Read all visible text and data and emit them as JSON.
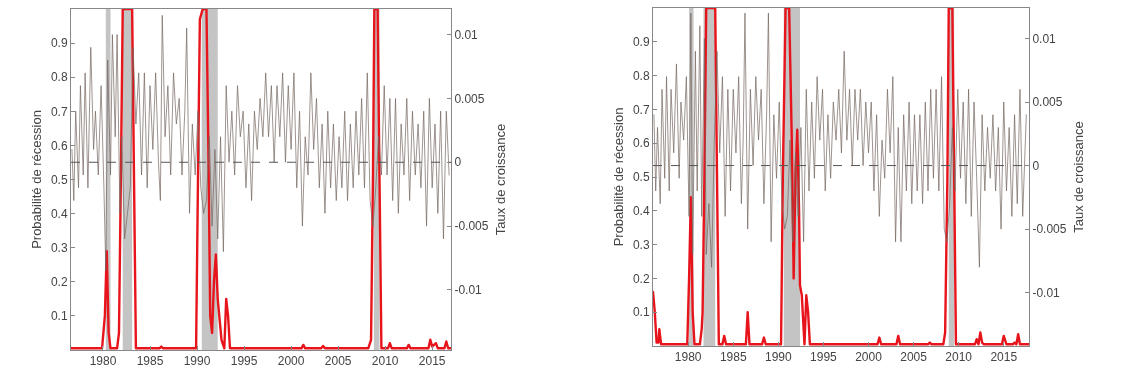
{
  "chart_data": [
    {
      "type": "line",
      "ylabel": "Probabilité de récession",
      "y2label": "Taux de croissance",
      "xlim": [
        1976.6,
        2017.0
      ],
      "xticks": [
        1980,
        1985,
        1990,
        1995,
        2000,
        2005,
        2010,
        2015
      ],
      "ylim": [
        0,
        1
      ],
      "yticks": [
        0.1,
        0.2,
        0.3,
        0.4,
        0.5,
        0.6,
        0.7,
        0.8,
        0.9
      ],
      "y2lim": [
        -0.0147,
        0.012
      ],
      "y2ticks": [
        -0.01,
        -0.005,
        0,
        0.005,
        0.01
      ],
      "grid": false,
      "bands": [
        {
          "axis": "x",
          "from": 1980.3,
          "to": 1980.8,
          "color": "#c4c4c4"
        },
        {
          "axis": "x",
          "from": 1982.1,
          "to": 1983.1,
          "color": "#c4c4c4"
        },
        {
          "axis": "x",
          "from": 1990.5,
          "to": 1992.2,
          "color": "#c4c4c4"
        },
        {
          "axis": "x",
          "from": 2008.8,
          "to": 2009.4,
          "color": "#c4c4c4"
        }
      ],
      "ref_lines": [
        {
          "axis": "y2",
          "value": 0,
          "line_style": "dashed",
          "color": "#555555"
        }
      ],
      "series": [
        {
          "axis": "y2",
          "color": "#74665e",
          "x": [
            1976.7,
            1976.9,
            1977.1,
            1977.4,
            1977.6,
            1977.9,
            1978.1,
            1978.4,
            1978.7,
            1979.0,
            1979.2,
            1979.5,
            1979.8,
            1980.1,
            1980.3,
            1980.5,
            1980.8,
            1981.0,
            1981.3,
            1981.5,
            1981.8,
            1982.0,
            1982.3,
            1982.6,
            1982.9,
            1983.2,
            1983.5,
            1983.8,
            1984.1,
            1984.4,
            1984.7,
            1985.0,
            1985.3,
            1985.6,
            1985.9,
            1986.1,
            1986.3,
            1986.6,
            1986.9,
            1987.2,
            1987.5,
            1987.8,
            1988.1,
            1988.4,
            1988.7,
            1988.9,
            1989.2,
            1989.5,
            1989.8,
            1990.1,
            1990.4,
            1990.7,
            1991.0,
            1991.3,
            1991.6,
            1991.9,
            1992.2,
            1992.5,
            1992.8,
            1993.1,
            1993.4,
            1993.7,
            1994.0,
            1994.3,
            1994.6,
            1994.9,
            1995.2,
            1995.5,
            1995.8,
            1996.1,
            1996.4,
            1996.7,
            1997.0,
            1997.3,
            1997.6,
            1997.9,
            1998.2,
            1998.5,
            1998.8,
            1999.1,
            1999.4,
            1999.7,
            2000.0,
            2000.3,
            2000.6,
            2000.9,
            2001.2,
            2001.5,
            2001.8,
            2002.1,
            2002.4,
            2002.7,
            2003.0,
            2003.3,
            2003.6,
            2003.9,
            2004.2,
            2004.5,
            2004.8,
            2005.1,
            2005.4,
            2005.7,
            2006.0,
            2006.3,
            2006.6,
            2006.9,
            2007.2,
            2007.5,
            2007.8,
            2008.1,
            2008.4,
            2008.7,
            2009.0,
            2009.3,
            2009.6,
            2009.9,
            2010.2,
            2010.5,
            2010.8,
            2011.1,
            2011.4,
            2011.7,
            2012.0,
            2012.3,
            2012.6,
            2012.9,
            2013.2,
            2013.5,
            2013.8,
            2014.1,
            2014.4,
            2014.7,
            2015.0,
            2015.3,
            2015.6,
            2015.9,
            2016.2,
            2016.5,
            2016.8
          ],
          "values": [
            0.001,
            -0.003,
            0.004,
            -0.002,
            0.006,
            -0.001,
            0.007,
            -0.002,
            0.009,
            0.001,
            0.004,
            -0.001,
            0.006,
            -0.002,
            -0.0085,
            0.008,
            -0.001,
            0.01,
            0.002,
            0.01,
            -0.004,
            0.002,
            -0.006,
            -0.004,
            -0.002,
            0.009,
            0.003,
            0.007,
            -0.001,
            0.007,
            -0.002,
            0.006,
            0.001,
            0.007,
            0.0,
            -0.003,
            0.0115,
            0.002,
            0.006,
            -0.001,
            0.007,
            0.003,
            0.005,
            -0.001,
            0.004,
            0.0105,
            -0.004,
            0.003,
            -0.001,
            0.004,
            -0.002,
            -0.004,
            -0.003,
            0.002,
            -0.005,
            0.001,
            -0.006,
            0.002,
            -0.007,
            0.006,
            0.0,
            0.004,
            -0.001,
            0.006,
            0.002,
            0.004,
            -0.002,
            0.003,
            -0.003,
            0.004,
            0.001,
            0.005,
            0.002,
            0.007,
            0.002,
            0.006,
            0.0,
            0.006,
            0.002,
            0.007,
            0.0,
            0.006,
            0.001,
            0.007,
            -0.002,
            0.004,
            -0.005,
            0.002,
            -0.001,
            0.007,
            0.001,
            0.005,
            -0.002,
            0.003,
            -0.004,
            0.004,
            -0.002,
            0.003,
            -0.003,
            0.002,
            -0.002,
            0.004,
            -0.003,
            0.003,
            -0.002,
            0.004,
            -0.001,
            0.005,
            -0.002,
            0.007,
            -0.003,
            -0.005,
            -0.002,
            0.002,
            -0.001,
            0.006,
            -0.001,
            0.005,
            -0.003,
            0.005,
            -0.004,
            0.003,
            -0.001,
            0.005,
            -0.003,
            0.004,
            -0.001,
            0.003,
            -0.002,
            0.004,
            -0.005,
            0.005,
            -0.002,
            0.003,
            -0.004,
            0.004,
            -0.006,
            0.004,
            -0.001
          ]
        },
        {
          "color": "#e8141c",
          "x": [
            1976.6,
            1979.9,
            1980.2,
            1980.4,
            1980.6,
            1980.8,
            1981.5,
            1981.7,
            1981.9,
            1982.1,
            1983.1,
            1983.3,
            1983.5,
            1986.0,
            1986.2,
            1986.4,
            1989.9,
            1990.1,
            1990.3,
            1990.6,
            1991.0,
            1991.2,
            1991.4,
            1991.6,
            1991.8,
            1992.0,
            1992.2,
            1992.4,
            1992.6,
            1992.9,
            1993.1,
            1993.3,
            1993.5,
            2001.1,
            2001.3,
            2001.5,
            2003.2,
            2003.4,
            2003.6,
            2008.2,
            2008.5,
            2008.7,
            2008.85,
            2009.2,
            2009.4,
            2009.6,
            2010.3,
            2010.5,
            2010.7,
            2012.3,
            2012.5,
            2012.7,
            2014.6,
            2014.8,
            2015.0,
            2015.4,
            2015.6,
            2016.3,
            2016.5,
            2016.7,
            2017.0
          ],
          "values": [
            0.005,
            0.005,
            0.1,
            0.29,
            0.05,
            0.005,
            0.005,
            0.05,
            0.5,
            1.0,
            1.0,
            0.5,
            0.005,
            0.005,
            0.01,
            0.005,
            0.005,
            0.5,
            0.97,
            1.0,
            1.0,
            0.6,
            0.1,
            0.05,
            0.2,
            0.28,
            0.15,
            0.09,
            0.03,
            0.005,
            0.15,
            0.1,
            0.005,
            0.005,
            0.015,
            0.005,
            0.005,
            0.012,
            0.005,
            0.005,
            0.03,
            0.5,
            1.0,
            1.0,
            0.5,
            0.005,
            0.005,
            0.02,
            0.005,
            0.005,
            0.015,
            0.005,
            0.005,
            0.03,
            0.01,
            0.02,
            0.005,
            0.005,
            0.025,
            0.005,
            0.005
          ]
        }
      ]
    },
    {
      "type": "line",
      "ylabel": "Probabilité de récession",
      "y2label": "Taux de croissance",
      "xlim": [
        1976.1,
        2017.8
      ],
      "xticks": [
        1980,
        1985,
        1990,
        1995,
        2000,
        2005,
        2010,
        2015
      ],
      "ylim": [
        0,
        1
      ],
      "yticks": [
        0.1,
        0.2,
        0.3,
        0.4,
        0.5,
        0.6,
        0.7,
        0.8,
        0.9
      ],
      "y2lim": [
        -0.0142,
        0.0124
      ],
      "y2ticks": [
        -0.01,
        -0.005,
        0,
        0.005,
        0.01
      ],
      "grid": false,
      "bands": [
        {
          "axis": "x",
          "from": 1980.1,
          "to": 1980.6,
          "color": "#c4c4c4"
        },
        {
          "axis": "x",
          "from": 1981.7,
          "to": 1983.0,
          "color": "#c4c4c4"
        },
        {
          "axis": "x",
          "from": 1990.6,
          "to": 1992.4,
          "color": "#c4c4c4"
        },
        {
          "axis": "x",
          "from": 2008.9,
          "to": 2009.5,
          "color": "#c4c4c4"
        }
      ],
      "ref_lines": [
        {
          "axis": "y2",
          "value": 0,
          "line_style": "dashed",
          "color": "#555555"
        }
      ],
      "series": [
        {
          "axis": "y2",
          "color": "#74665e",
          "x": [
            1976.2,
            1976.4,
            1976.6,
            1976.9,
            1977.1,
            1977.4,
            1977.6,
            1977.9,
            1978.1,
            1978.4,
            1978.7,
            1979.0,
            1979.2,
            1979.5,
            1979.8,
            1980.1,
            1980.3,
            1980.5,
            1980.8,
            1981.0,
            1981.3,
            1981.5,
            1981.8,
            1982.0,
            1982.3,
            1982.6,
            1982.9,
            1983.2,
            1983.5,
            1983.8,
            1984.1,
            1984.4,
            1984.7,
            1985.0,
            1985.3,
            1985.6,
            1985.9,
            1986.1,
            1986.3,
            1986.6,
            1986.9,
            1987.2,
            1987.5,
            1987.8,
            1988.1,
            1988.4,
            1988.7,
            1988.9,
            1989.2,
            1989.5,
            1989.8,
            1990.1,
            1990.4,
            1990.7,
            1991.0,
            1991.3,
            1991.6,
            1991.9,
            1992.2,
            1992.5,
            1992.8,
            1993.1,
            1993.4,
            1993.7,
            1994.0,
            1994.3,
            1994.6,
            1994.9,
            1995.2,
            1995.5,
            1995.8,
            1996.1,
            1996.4,
            1996.7,
            1997.0,
            1997.3,
            1997.6,
            1997.9,
            1998.2,
            1998.5,
            1998.8,
            1999.1,
            1999.4,
            1999.7,
            2000.0,
            2000.3,
            2000.6,
            2000.9,
            2001.2,
            2001.5,
            2001.8,
            2002.1,
            2002.4,
            2002.7,
            2003.0,
            2003.3,
            2003.6,
            2003.9,
            2004.2,
            2004.5,
            2004.8,
            2005.1,
            2005.4,
            2005.7,
            2006.0,
            2006.3,
            2006.6,
            2006.9,
            2007.2,
            2007.5,
            2007.8,
            2008.1,
            2008.4,
            2008.7,
            2009.0,
            2009.3,
            2009.6,
            2009.9,
            2010.2,
            2010.5,
            2010.8,
            2011.1,
            2011.4,
            2011.7,
            2012.0,
            2012.3,
            2012.6,
            2012.9,
            2013.2,
            2013.5,
            2013.8,
            2014.1,
            2014.4,
            2014.7,
            2015.0,
            2015.3,
            2015.6,
            2015.9,
            2016.2,
            2016.5,
            2016.8,
            2017.1,
            2017.5
          ],
          "values": [
            0.004,
            -0.002,
            0.003,
            -0.003,
            0.006,
            -0.001,
            0.007,
            -0.002,
            0.006,
            0.001,
            0.008,
            -0.001,
            0.005,
            0.002,
            0.007,
            -0.004,
            0.012,
            -0.007,
            0.009,
            -0.002,
            0.011,
            -0.004,
            0.01,
            -0.007,
            -0.003,
            -0.008,
            0.002,
            0.009,
            0.001,
            0.007,
            -0.004,
            0.006,
            -0.002,
            0.006,
            0.001,
            0.007,
            -0.003,
            0.002,
            0.012,
            -0.005,
            0.006,
            0.0,
            0.007,
            0.002,
            0.006,
            -0.003,
            0.004,
            0.012,
            -0.006,
            0.004,
            -0.001,
            0.005,
            -0.003,
            -0.005,
            -0.004,
            0.002,
            -0.006,
            0.001,
            -0.004,
            0.003,
            -0.006,
            0.006,
            -0.002,
            0.005,
            -0.001,
            0.007,
            0.002,
            0.006,
            -0.002,
            0.004,
            -0.001,
            0.005,
            0.002,
            0.006,
            0.001,
            0.009,
            0.002,
            0.006,
            0.0,
            0.006,
            0.002,
            0.006,
            0.0,
            0.005,
            0.001,
            0.005,
            -0.002,
            0.004,
            -0.004,
            0.002,
            -0.001,
            0.006,
            0.001,
            0.007,
            -0.006,
            0.003,
            -0.006,
            0.004,
            -0.002,
            0.005,
            -0.003,
            0.004,
            -0.002,
            0.004,
            -0.003,
            0.005,
            -0.002,
            0.006,
            -0.001,
            0.006,
            -0.002,
            0.007,
            -0.005,
            -0.006,
            -0.003,
            0.003,
            -0.002,
            0.006,
            -0.001,
            0.005,
            -0.003,
            0.006,
            -0.004,
            0.005,
            -0.001,
            -0.008,
            0.004,
            -0.002,
            0.003,
            -0.001,
            0.004,
            -0.002,
            0.003,
            -0.005,
            0.005,
            -0.002,
            0.003,
            -0.004,
            0.004,
            -0.003,
            0.006,
            -0.004,
            0.004
          ]
        },
        {
          "color": "#e8141c",
          "x": [
            1976.1,
            1976.3,
            1976.5,
            1976.7,
            1976.8,
            1977.0,
            1979.9,
            1980.1,
            1980.3,
            1980.5,
            1980.7,
            1981.3,
            1981.5,
            1981.6,
            1981.8,
            1982.0,
            1983.0,
            1983.2,
            1983.4,
            1983.8,
            1984.0,
            1984.2,
            1986.4,
            1986.6,
            1986.8,
            1988.2,
            1988.4,
            1988.6,
            1990.3,
            1990.5,
            1990.8,
            1991.2,
            1991.5,
            1991.7,
            1991.9,
            1992.1,
            1992.3,
            1992.4,
            1992.6,
            1992.9,
            1993.1,
            1993.3,
            1993.5,
            2001.0,
            2001.2,
            2001.4,
            2003.1,
            2003.3,
            2003.5,
            2006.6,
            2006.8,
            2007.0,
            2008.3,
            2008.5,
            2008.75,
            2008.9,
            2009.3,
            2009.5,
            2009.7,
            2011.8,
            2012.0,
            2012.2,
            2012.4,
            2012.6,
            2012.8,
            2014.8,
            2015.0,
            2015.3,
            2016.0,
            2016.2,
            2016.4,
            2016.6,
            2016.8,
            2017.8
          ],
          "values": [
            0.16,
            0.1,
            0.01,
            0.01,
            0.05,
            0.005,
            0.005,
            0.2,
            0.44,
            0.1,
            0.005,
            0.005,
            0.05,
            0.1,
            0.5,
            1.0,
            1.0,
            0.5,
            0.005,
            0.005,
            0.03,
            0.005,
            0.005,
            0.1,
            0.005,
            0.005,
            0.025,
            0.005,
            0.005,
            0.5,
            1.0,
            1.0,
            0.6,
            0.2,
            0.5,
            0.64,
            0.4,
            0.18,
            0.15,
            0.005,
            0.15,
            0.1,
            0.005,
            0.005,
            0.025,
            0.005,
            0.005,
            0.03,
            0.005,
            0.005,
            0.01,
            0.005,
            0.005,
            0.04,
            0.5,
            1.0,
            1.0,
            0.5,
            0.005,
            0.005,
            0.02,
            0.005,
            0.04,
            0.01,
            0.005,
            0.005,
            0.03,
            0.005,
            0.005,
            0.01,
            0.005,
            0.035,
            0.005,
            0.005
          ]
        }
      ]
    }
  ]
}
